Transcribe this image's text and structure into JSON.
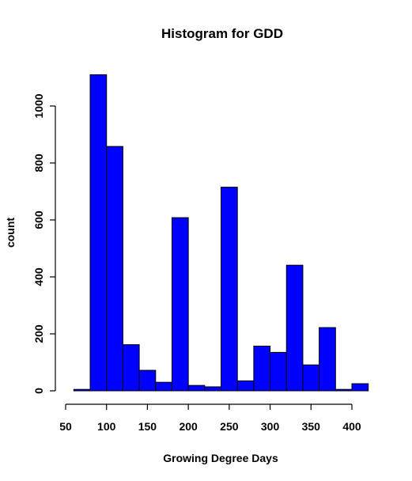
{
  "chart_data": {
    "type": "bar",
    "title": "Histogram for GDD",
    "xlabel": "Growing Degree Days",
    "ylabel": "count",
    "bar_color": "#0000ff",
    "bin_width": 20,
    "bins": [
      {
        "x0": 60,
        "x1": 80,
        "count": 5
      },
      {
        "x0": 80,
        "x1": 100,
        "count": 1110
      },
      {
        "x0": 100,
        "x1": 120,
        "count": 858
      },
      {
        "x0": 120,
        "x1": 140,
        "count": 162
      },
      {
        "x0": 140,
        "x1": 160,
        "count": 72
      },
      {
        "x0": 160,
        "x1": 180,
        "count": 30
      },
      {
        "x0": 180,
        "x1": 200,
        "count": 608
      },
      {
        "x0": 200,
        "x1": 220,
        "count": 19
      },
      {
        "x0": 220,
        "x1": 240,
        "count": 14
      },
      {
        "x0": 240,
        "x1": 260,
        "count": 715
      },
      {
        "x0": 260,
        "x1": 280,
        "count": 35
      },
      {
        "x0": 280,
        "x1": 300,
        "count": 157
      },
      {
        "x0": 300,
        "x1": 320,
        "count": 135
      },
      {
        "x0": 320,
        "x1": 340,
        "count": 441
      },
      {
        "x0": 340,
        "x1": 360,
        "count": 91
      },
      {
        "x0": 360,
        "x1": 380,
        "count": 222
      },
      {
        "x0": 380,
        "x1": 400,
        "count": 5
      },
      {
        "x0": 400,
        "x1": 420,
        "count": 25
      }
    ],
    "xlim": [
      60,
      420
    ],
    "ylim": [
      0,
      1110
    ],
    "x_ticks": [
      50,
      100,
      150,
      200,
      250,
      300,
      350,
      400
    ],
    "y_ticks": [
      0,
      200,
      400,
      600,
      800,
      1000
    ],
    "x_tick_labels": [
      "50",
      "100",
      "150",
      "200",
      "250",
      "300",
      "350",
      "400"
    ],
    "y_tick_labels": [
      "0",
      "200",
      "400",
      "600",
      "800",
      "1000"
    ],
    "grid": false,
    "legend": "none"
  }
}
